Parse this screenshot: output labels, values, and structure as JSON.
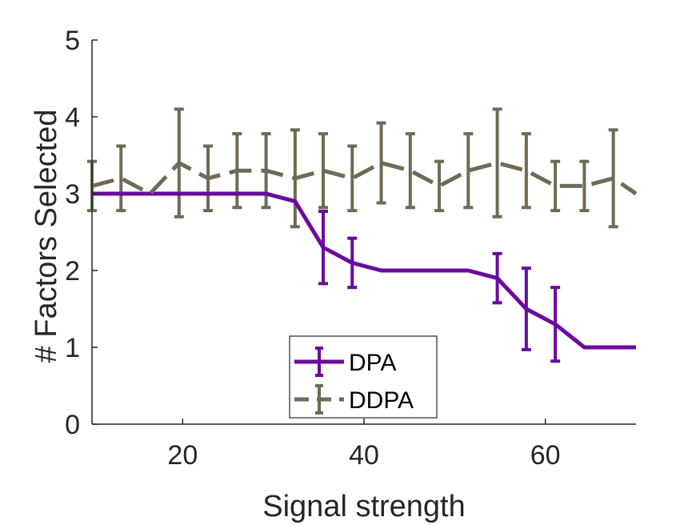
{
  "chart_data": {
    "type": "line",
    "xlabel": "Signal strength",
    "ylabel": "# Factors Selected",
    "xlim": [
      10,
      70
    ],
    "ylim": [
      0,
      5
    ],
    "xticks": [
      20,
      40,
      60
    ],
    "yticks": [
      0,
      1,
      2,
      3,
      4,
      5
    ],
    "grid": false,
    "legend_position": "bottom-center",
    "series": [
      {
        "name": "DPA",
        "color": "#6a0aa0",
        "dashed": false,
        "x": [
          10,
          13.2,
          16.4,
          19.6,
          22.8,
          26,
          29.2,
          32.4,
          35.5,
          38.7,
          41.9,
          45.1,
          48.3,
          51.5,
          54.7,
          57.9,
          61.1,
          64.3,
          67.5,
          70
        ],
        "y": [
          3,
          3,
          3,
          3,
          3,
          3,
          3,
          2.9,
          2.3,
          2.1,
          2,
          2,
          2,
          2,
          1.9,
          1.5,
          1.3,
          1,
          1,
          1
        ],
        "err": [
          0,
          0,
          0,
          0,
          0,
          0,
          0,
          0,
          0.47,
          0.32,
          0,
          0,
          0,
          0,
          0.32,
          0.53,
          0.48,
          0,
          0,
          0
        ]
      },
      {
        "name": "DDPA",
        "color": "#6e6a55",
        "dashed": true,
        "x": [
          10,
          13.2,
          16.4,
          19.6,
          22.8,
          26,
          29.2,
          32.4,
          35.5,
          38.7,
          41.9,
          45.1,
          48.3,
          51.5,
          54.7,
          57.9,
          61.1,
          64.3,
          67.5,
          70
        ],
        "y": [
          3.1,
          3.2,
          3,
          3.4,
          3.2,
          3.3,
          3.3,
          3.2,
          3.3,
          3.2,
          3.4,
          3.3,
          3.1,
          3.3,
          3.4,
          3.3,
          3.1,
          3.1,
          3.2,
          3
        ],
        "err": [
          0.32,
          0.42,
          0,
          0.7,
          0.42,
          0.48,
          0.48,
          0.63,
          0.48,
          0.42,
          0.52,
          0.48,
          0.32,
          0.48,
          0.7,
          0.48,
          0.32,
          0.32,
          0.63,
          0
        ]
      }
    ]
  }
}
